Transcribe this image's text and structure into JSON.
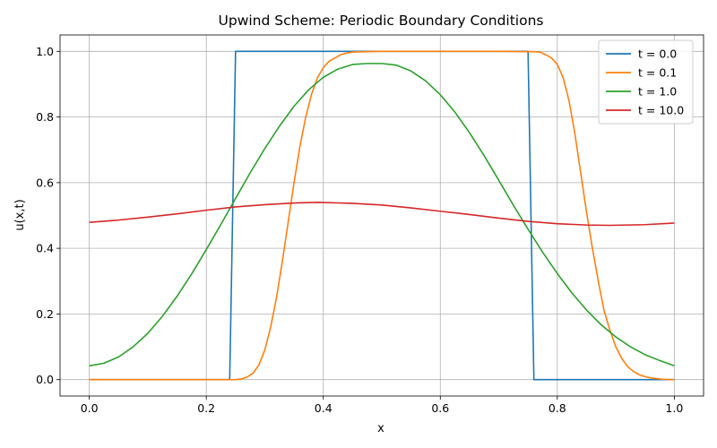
{
  "chart_data": {
    "type": "line",
    "title": "Upwind Scheme: Periodic Boundary Conditions",
    "xlabel": "x",
    "ylabel": "u(x,t)",
    "xlim": [
      -0.05,
      1.05
    ],
    "ylim": [
      -0.05,
      1.05
    ],
    "xticks": [
      0.0,
      0.2,
      0.4,
      0.6,
      0.8,
      1.0
    ],
    "xtick_labels": [
      "0.0",
      "0.2",
      "0.4",
      "0.6",
      "0.8",
      "1.0"
    ],
    "yticks": [
      0.0,
      0.2,
      0.4,
      0.6,
      0.8,
      1.0
    ],
    "ytick_labels": [
      "0.0",
      "0.2",
      "0.4",
      "0.6",
      "0.8",
      "1.0"
    ],
    "grid": true,
    "legend_position": "top-right",
    "series": [
      {
        "name": "t = 0.0",
        "color": "#1f77b4",
        "x": [
          0.0,
          0.24,
          0.25,
          0.75,
          0.76,
          1.0
        ],
        "y": [
          0.0,
          0.0,
          1.0,
          1.0,
          0.0,
          0.0
        ]
      },
      {
        "name": "t = 0.1",
        "color": "#ff7f0e",
        "x": [
          0.0,
          0.25,
          0.26,
          0.27,
          0.28,
          0.29,
          0.3,
          0.31,
          0.32,
          0.33,
          0.34,
          0.35,
          0.36,
          0.37,
          0.38,
          0.39,
          0.4,
          0.41,
          0.42,
          0.43,
          0.44,
          0.45,
          0.47,
          0.5,
          0.55,
          0.6,
          0.7,
          0.76,
          0.77,
          0.78,
          0.79,
          0.8,
          0.81,
          0.82,
          0.83,
          0.84,
          0.85,
          0.86,
          0.87,
          0.88,
          0.89,
          0.9,
          0.91,
          0.92,
          0.93,
          0.94,
          0.95,
          0.96,
          0.97,
          0.98,
          1.0
        ],
        "y": [
          0.0,
          0.0,
          0.002,
          0.008,
          0.02,
          0.045,
          0.09,
          0.16,
          0.25,
          0.36,
          0.48,
          0.6,
          0.71,
          0.8,
          0.87,
          0.92,
          0.95,
          0.97,
          0.98,
          0.99,
          0.995,
          0.998,
          0.999,
          1.0,
          1.0,
          1.0,
          1.0,
          0.999,
          0.998,
          0.99,
          0.98,
          0.96,
          0.92,
          0.85,
          0.75,
          0.63,
          0.51,
          0.4,
          0.3,
          0.21,
          0.15,
          0.1,
          0.065,
          0.04,
          0.025,
          0.015,
          0.009,
          0.005,
          0.003,
          0.001,
          0.0
        ]
      },
      {
        "name": "t = 1.0",
        "color": "#2ca02c",
        "x": [
          0.0,
          0.025,
          0.05,
          0.075,
          0.1,
          0.125,
          0.15,
          0.175,
          0.2,
          0.225,
          0.25,
          0.275,
          0.3,
          0.325,
          0.35,
          0.375,
          0.4,
          0.425,
          0.45,
          0.475,
          0.5,
          0.525,
          0.55,
          0.575,
          0.6,
          0.625,
          0.65,
          0.675,
          0.7,
          0.725,
          0.75,
          0.775,
          0.8,
          0.825,
          0.85,
          0.875,
          0.9,
          0.925,
          0.95,
          0.975,
          1.0
        ],
        "y": [
          0.042,
          0.05,
          0.069,
          0.1,
          0.141,
          0.193,
          0.254,
          0.322,
          0.396,
          0.473,
          0.552,
          0.63,
          0.704,
          0.772,
          0.833,
          0.883,
          0.921,
          0.946,
          0.96,
          0.963,
          0.963,
          0.958,
          0.94,
          0.91,
          0.868,
          0.815,
          0.752,
          0.682,
          0.607,
          0.531,
          0.458,
          0.388,
          0.323,
          0.264,
          0.212,
          0.167,
          0.13,
          0.1,
          0.076,
          0.058,
          0.042
        ]
      },
      {
        "name": "t = 10.0",
        "color": "#d62728",
        "x": [
          0.0,
          0.05,
          0.1,
          0.15,
          0.2,
          0.25,
          0.3,
          0.35,
          0.39,
          0.45,
          0.5,
          0.55,
          0.6,
          0.65,
          0.7,
          0.75,
          0.8,
          0.85,
          0.89,
          0.95,
          1.0
        ],
        "y": [
          0.479,
          0.486,
          0.495,
          0.505,
          0.516,
          0.526,
          0.533,
          0.538,
          0.54,
          0.537,
          0.532,
          0.523,
          0.513,
          0.503,
          0.492,
          0.482,
          0.475,
          0.471,
          0.47,
          0.472,
          0.477
        ]
      }
    ]
  }
}
